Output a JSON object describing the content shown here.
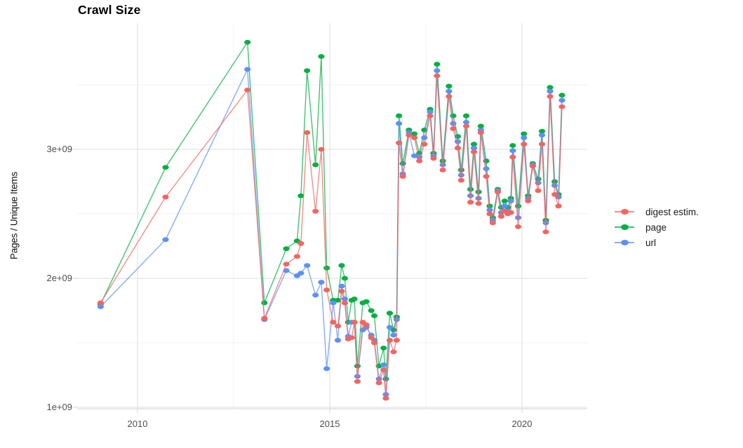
{
  "title": "Crawl Size",
  "y_axis": {
    "label": "Pages / Unique Items",
    "ticks": {
      "t1": "1e+09",
      "t2": "2e+09",
      "t3": "3e+09"
    }
  },
  "x_axis": {
    "ticks": {
      "t2010": "2010",
      "t2015": "2015",
      "t2020": "2020"
    }
  },
  "legend": {
    "position": "right",
    "items": [
      {
        "label": "digest estim.",
        "color": "#F4655F"
      },
      {
        "label": "page",
        "color": "#00B140"
      },
      {
        "label": "url",
        "color": "#5B91FA"
      }
    ]
  },
  "chart_data": {
    "type": "line",
    "title": "Crawl Size",
    "xlabel": "",
    "ylabel": "Pages / Unique Items",
    "x_unit": "year (crawl date)",
    "y_unit": "count",
    "xlim": [
      2008.5,
      2021.7
    ],
    "ylim": [
      930000000,
      3980000000
    ],
    "grid": true,
    "y_major_ticks": [
      1000000000,
      2000000000,
      3000000000
    ],
    "y_minor_ticks": [
      1500000000,
      2500000000,
      3500000000
    ],
    "x_major_ticks": [
      2010,
      2015,
      2020
    ],
    "x_minor_ticks": [
      2012.5,
      2017.5
    ],
    "x": [
      2009.04,
      2010.73,
      2012.86,
      2013.3,
      2013.87,
      2014.15,
      2014.25,
      2014.41,
      2014.63,
      2014.78,
      2014.92,
      2015.09,
      2015.21,
      2015.31,
      2015.39,
      2015.48,
      2015.57,
      2015.64,
      2015.72,
      2015.86,
      2015.95,
      2016.08,
      2016.16,
      2016.28,
      2016.4,
      2016.46,
      2016.56,
      2016.66,
      2016.74,
      2016.8,
      2016.9,
      2017.06,
      2017.2,
      2017.33,
      2017.46,
      2017.61,
      2017.7,
      2017.79,
      2017.94,
      2018.1,
      2018.21,
      2018.33,
      2018.42,
      2018.55,
      2018.66,
      2018.75,
      2018.87,
      2018.93,
      2019.07,
      2019.16,
      2019.24,
      2019.37,
      2019.46,
      2019.55,
      2019.63,
      2019.71,
      2019.76,
      2019.9,
      2020.05,
      2020.16,
      2020.28,
      2020.42,
      2020.52,
      2020.62,
      2020.73,
      2020.85,
      2020.95,
      2021.04
    ],
    "values_unit": "billions of pages / unique items",
    "series": [
      {
        "name": "digest estim.",
        "color": "#F4655F",
        "values": [
          1.81,
          2.63,
          3.46,
          1.69,
          2.11,
          2.17,
          2.27,
          3.13,
          2.52,
          3.0,
          1.91,
          1.66,
          1.63,
          1.9,
          1.81,
          1.53,
          1.54,
          1.66,
          1.2,
          1.66,
          1.64,
          1.54,
          1.5,
          1.19,
          1.29,
          1.07,
          1.52,
          1.43,
          1.52,
          3.05,
          2.79,
          3.11,
          3.09,
          2.91,
          3.04,
          3.26,
          2.93,
          3.57,
          2.84,
          3.41,
          3.16,
          3.01,
          2.76,
          3.18,
          2.59,
          2.98,
          2.58,
          3.13,
          2.79,
          2.5,
          2.43,
          2.67,
          2.48,
          2.52,
          2.5,
          2.51,
          2.94,
          2.4,
          3.04,
          2.6,
          2.87,
          2.68,
          3.04,
          2.36,
          3.41,
          2.65,
          2.56,
          3.33
        ]
      },
      {
        "name": "page",
        "color": "#00B140",
        "values": [
          1.8,
          2.86,
          3.83,
          1.81,
          2.23,
          2.29,
          2.64,
          3.61,
          2.88,
          3.72,
          2.08,
          1.83,
          1.83,
          2.1,
          2.0,
          1.66,
          1.83,
          1.84,
          1.32,
          1.81,
          1.82,
          1.75,
          1.71,
          1.32,
          1.46,
          1.22,
          1.73,
          1.6,
          1.7,
          3.26,
          2.89,
          3.15,
          3.12,
          2.97,
          3.15,
          3.31,
          2.97,
          3.66,
          2.91,
          3.49,
          3.26,
          3.1,
          2.84,
          3.26,
          2.69,
          3.04,
          2.67,
          3.18,
          2.91,
          2.56,
          2.47,
          2.69,
          2.55,
          2.6,
          2.55,
          2.62,
          3.03,
          2.56,
          3.12,
          2.64,
          2.89,
          2.77,
          3.14,
          2.45,
          3.48,
          2.75,
          2.65,
          3.42
        ]
      },
      {
        "name": "url",
        "color": "#5B91FA",
        "values": [
          1.78,
          2.3,
          3.62,
          1.68,
          2.06,
          2.02,
          2.04,
          2.1,
          1.87,
          1.97,
          1.3,
          1.81,
          1.52,
          1.94,
          1.84,
          1.55,
          1.66,
          1.66,
          1.24,
          1.6,
          1.62,
          1.56,
          1.52,
          1.22,
          1.33,
          1.1,
          1.62,
          1.56,
          1.68,
          3.2,
          2.81,
          3.13,
          2.95,
          2.94,
          3.09,
          3.29,
          2.95,
          3.61,
          2.88,
          3.45,
          3.2,
          3.06,
          2.8,
          3.21,
          2.64,
          3.01,
          2.62,
          3.15,
          2.85,
          2.53,
          2.45,
          2.68,
          2.51,
          2.56,
          2.52,
          2.6,
          2.99,
          2.47,
          3.09,
          2.62,
          2.88,
          2.74,
          3.11,
          2.43,
          3.45,
          2.72,
          2.63,
          3.38
        ]
      }
    ]
  }
}
